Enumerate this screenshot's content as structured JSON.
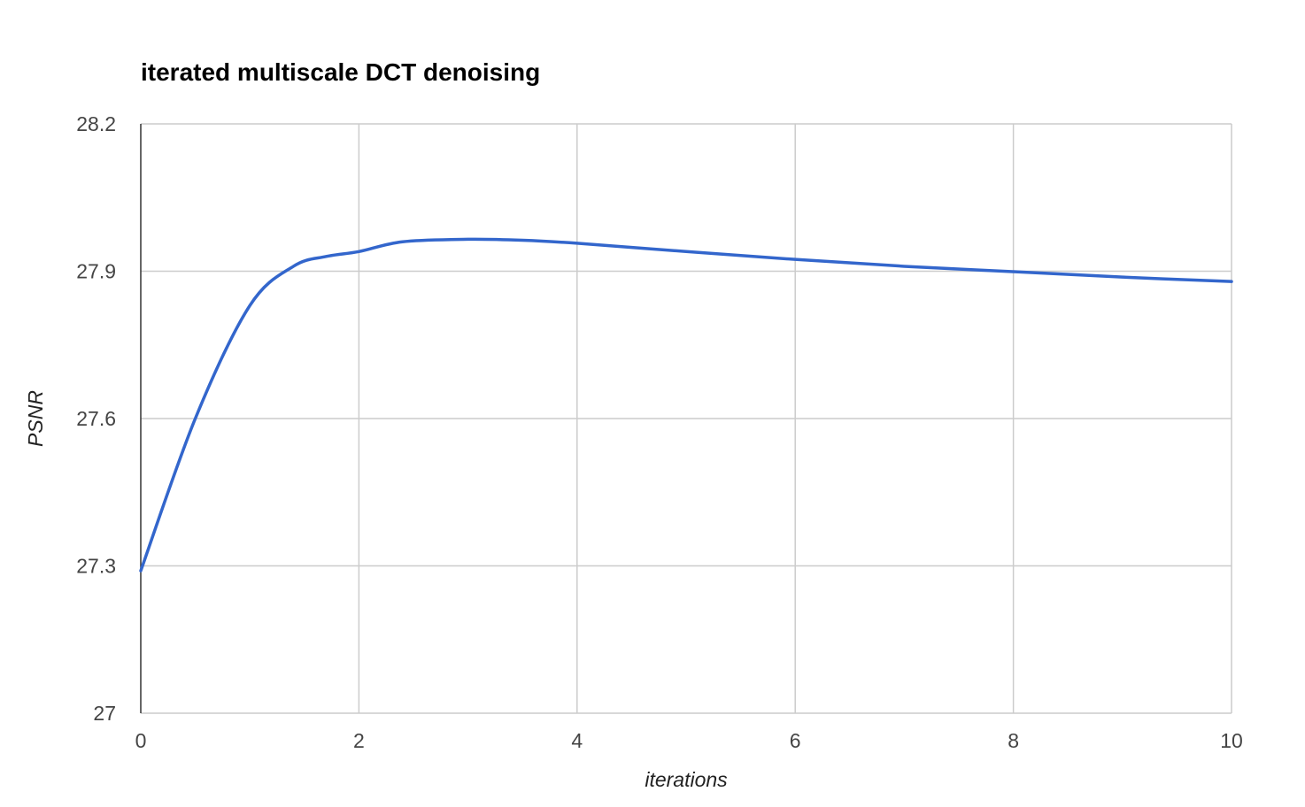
{
  "chart_data": {
    "type": "line",
    "title": "iterated multiscale DCT denoising",
    "xlabel": "iterations",
    "ylabel": "PSNR",
    "xlim": [
      0,
      10
    ],
    "ylim": [
      27,
      28.2
    ],
    "x_ticks": [
      "0",
      "2",
      "4",
      "6",
      "8",
      "10"
    ],
    "y_ticks": [
      "27",
      "27.3",
      "27.6",
      "27.9",
      "28.2"
    ],
    "grid": true,
    "legend": "none",
    "series": [
      {
        "color": "#3366cc",
        "x": [
          0,
          0.5,
          1,
          1.4,
          1.7,
          2,
          2.4,
          3,
          3.5,
          4,
          5,
          6,
          7,
          8,
          9,
          10
        ],
        "y": [
          27.29,
          27.6,
          27.83,
          27.91,
          27.93,
          27.94,
          27.96,
          27.965,
          27.963,
          27.957,
          27.94,
          27.924,
          27.91,
          27.899,
          27.888,
          27.879
        ]
      }
    ]
  }
}
